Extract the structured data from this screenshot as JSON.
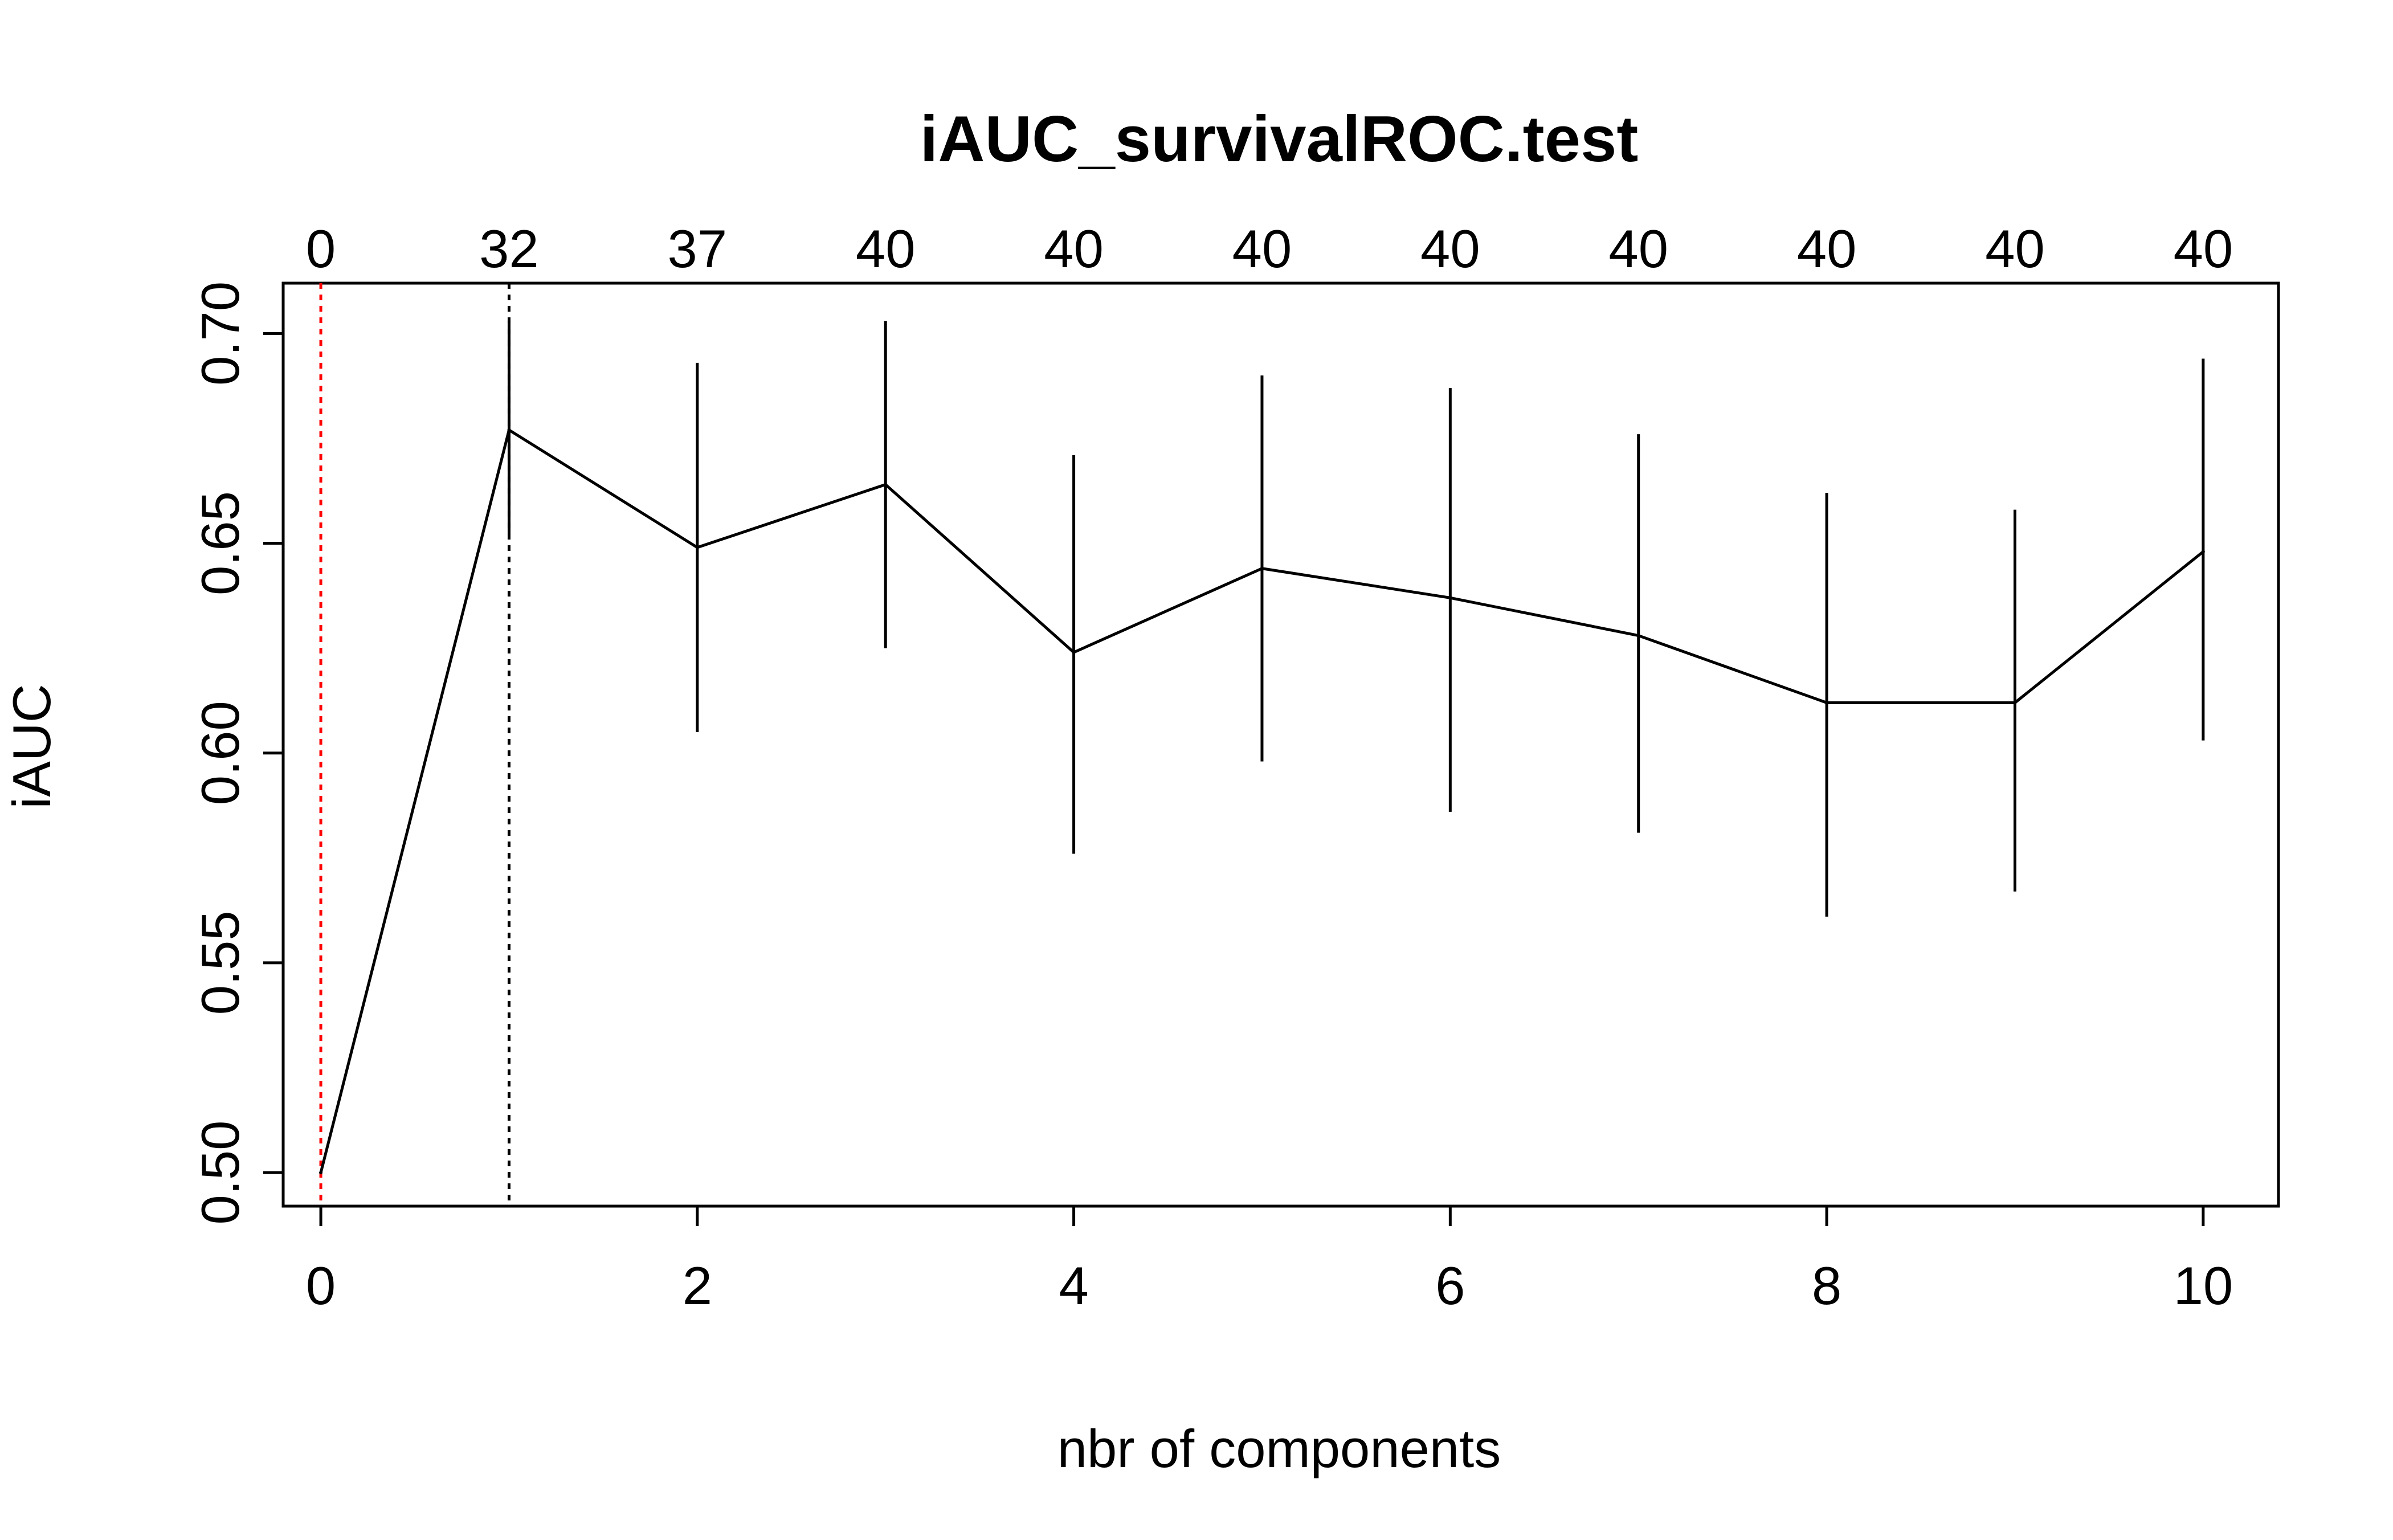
{
  "chart_data": {
    "type": "line",
    "title": "iAUC_survivalROC.test",
    "xlabel": "nbr of components",
    "ylabel": "iAUC",
    "xlim": [
      -0.2,
      10.4
    ],
    "ylim": [
      0.492,
      0.712
    ],
    "x_ticks": [
      "0",
      "2",
      "4",
      "6",
      "8",
      "10"
    ],
    "y_ticks": [
      "0.50",
      "0.55",
      "0.60",
      "0.65",
      "0.70"
    ],
    "top_ticks": [
      "0",
      "32",
      "37",
      "40",
      "40",
      "40",
      "40",
      "40",
      "40",
      "40",
      "40"
    ],
    "grid": false,
    "series": [
      {
        "x": [
          0,
          1,
          2,
          3,
          4,
          5,
          6,
          7,
          8,
          9,
          10
        ],
        "y": [
          0.5,
          0.677,
          0.649,
          0.664,
          0.624,
          0.644,
          0.637,
          0.628,
          0.612,
          0.612,
          0.648
        ],
        "error_lower": [
          0.5,
          0.652,
          0.605,
          0.625,
          0.576,
          0.598,
          0.586,
          0.581,
          0.561,
          0.567,
          0.603
        ],
        "error_upper": [
          0.5,
          0.703,
          0.693,
          0.703,
          0.671,
          0.69,
          0.687,
          0.676,
          0.662,
          0.658,
          0.694
        ]
      }
    ],
    "reference_lines": [
      {
        "x": 0,
        "style": "dotted",
        "color": "#ff0000"
      },
      {
        "x": 1,
        "style": "dotted",
        "color": "#000000"
      }
    ]
  }
}
